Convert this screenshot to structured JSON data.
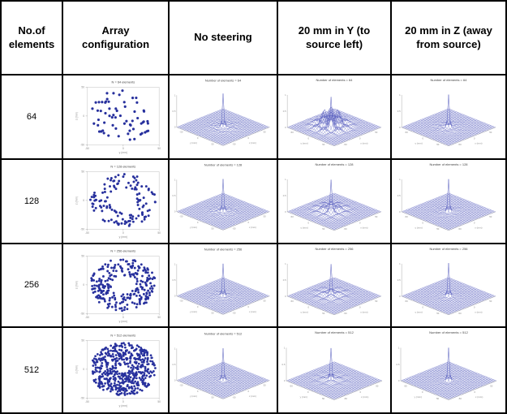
{
  "table": {
    "headers": [
      "No.of elements",
      "Array configuration",
      "No steering",
      "20 mm in Y (to source left)",
      "20 mm in Z (away from source)"
    ],
    "rows": [
      {
        "elements": "64",
        "scatter": {
          "n": 64,
          "inner": 0.08,
          "dot": 1.6,
          "seed": 101,
          "title": "N = 64 elements"
        },
        "plots": [
          {
            "title": "Number of elements = 64",
            "noise": 0.1,
            "sidelobes": false,
            "ox": 0,
            "oy": 0,
            "peak": 1,
            "seed": 201
          },
          {
            "title": "Number of elements = 64",
            "noise": 0.7,
            "sidelobes": true,
            "ox": -0.133,
            "oy": 0,
            "peak": 0.9,
            "seed": 202
          },
          {
            "title": "Number of elements = 64",
            "noise": 0.07,
            "sidelobes": false,
            "ox": 0,
            "oy": 0,
            "peak": 1,
            "seed": 203
          }
        ]
      },
      {
        "elements": "128",
        "scatter": {
          "n": 128,
          "inner": 0.42,
          "dot": 1.5,
          "seed": 102,
          "title": "N = 128 elements"
        },
        "plots": [
          {
            "title": "Number of elements = 128",
            "noise": 0.07,
            "sidelobes": false,
            "ox": 0,
            "oy": 0,
            "peak": 1,
            "seed": 204
          },
          {
            "title": "Number of elements = 128",
            "noise": 0.28,
            "sidelobes": true,
            "ox": -0.133,
            "oy": 0,
            "peak": 0.95,
            "seed": 205
          },
          {
            "title": "Number of elements = 128",
            "noise": 0.05,
            "sidelobes": false,
            "ox": 0,
            "oy": 0,
            "peak": 1,
            "seed": 206
          }
        ]
      },
      {
        "elements": "256",
        "scatter": {
          "n": 256,
          "inner": 0.36,
          "dot": 1.45,
          "seed": 103,
          "title": "N = 256 elements"
        },
        "plots": [
          {
            "title": "Number of elements = 256",
            "noise": 0.05,
            "sidelobes": false,
            "ox": 0,
            "oy": 0,
            "peak": 1,
            "seed": 207
          },
          {
            "title": "Number of elements = 256",
            "noise": 0.14,
            "sidelobes": true,
            "ox": -0.133,
            "oy": 0,
            "peak": 0.95,
            "seed": 208
          },
          {
            "title": "Number of elements = 256",
            "noise": 0.04,
            "sidelobes": false,
            "ox": 0,
            "oy": 0,
            "peak": 1,
            "seed": 209
          }
        ]
      },
      {
        "elements": "512",
        "scatter": {
          "n": 512,
          "inner": 0.16,
          "dot": 1.4,
          "seed": 104,
          "title": "N = 512 elements"
        },
        "plots": [
          {
            "title": "Number of elements = 512",
            "noise": 0.03,
            "sidelobes": false,
            "ox": 0,
            "oy": 0,
            "peak": 1,
            "seed": 210
          },
          {
            "title": "Number of elements = 512",
            "noise": 0.07,
            "sidelobes": true,
            "ox": -0.133,
            "oy": 0,
            "peak": 0.95,
            "seed": 211
          },
          {
            "title": "Number of elements = 512",
            "noise": 0.03,
            "sidelobes": false,
            "ox": 0,
            "oy": 0,
            "peak": 1,
            "seed": 212
          }
        ]
      }
    ]
  },
  "scatter_axes": {
    "xticks": [
      "-50",
      "0",
      "50"
    ],
    "yticks": [
      "-50",
      "0",
      "50"
    ],
    "xlabel": "y (mm)",
    "ylabel": "z (mm)"
  },
  "mesh_axes": {
    "xticks": [
      "-50",
      "0",
      "50"
    ],
    "yticks": [
      "-50",
      "0",
      "50"
    ],
    "zticks": [
      "0",
      "0.5",
      "1"
    ],
    "xlabel": "y (mm)",
    "ylabel": "x (mm)"
  },
  "colors": {
    "dot": "#27309d",
    "mesh": "#5d64c0",
    "axis": "#aaaaaa",
    "tick_text": "#8a8a8a",
    "title_text": "#444444",
    "border": "#000000"
  }
}
